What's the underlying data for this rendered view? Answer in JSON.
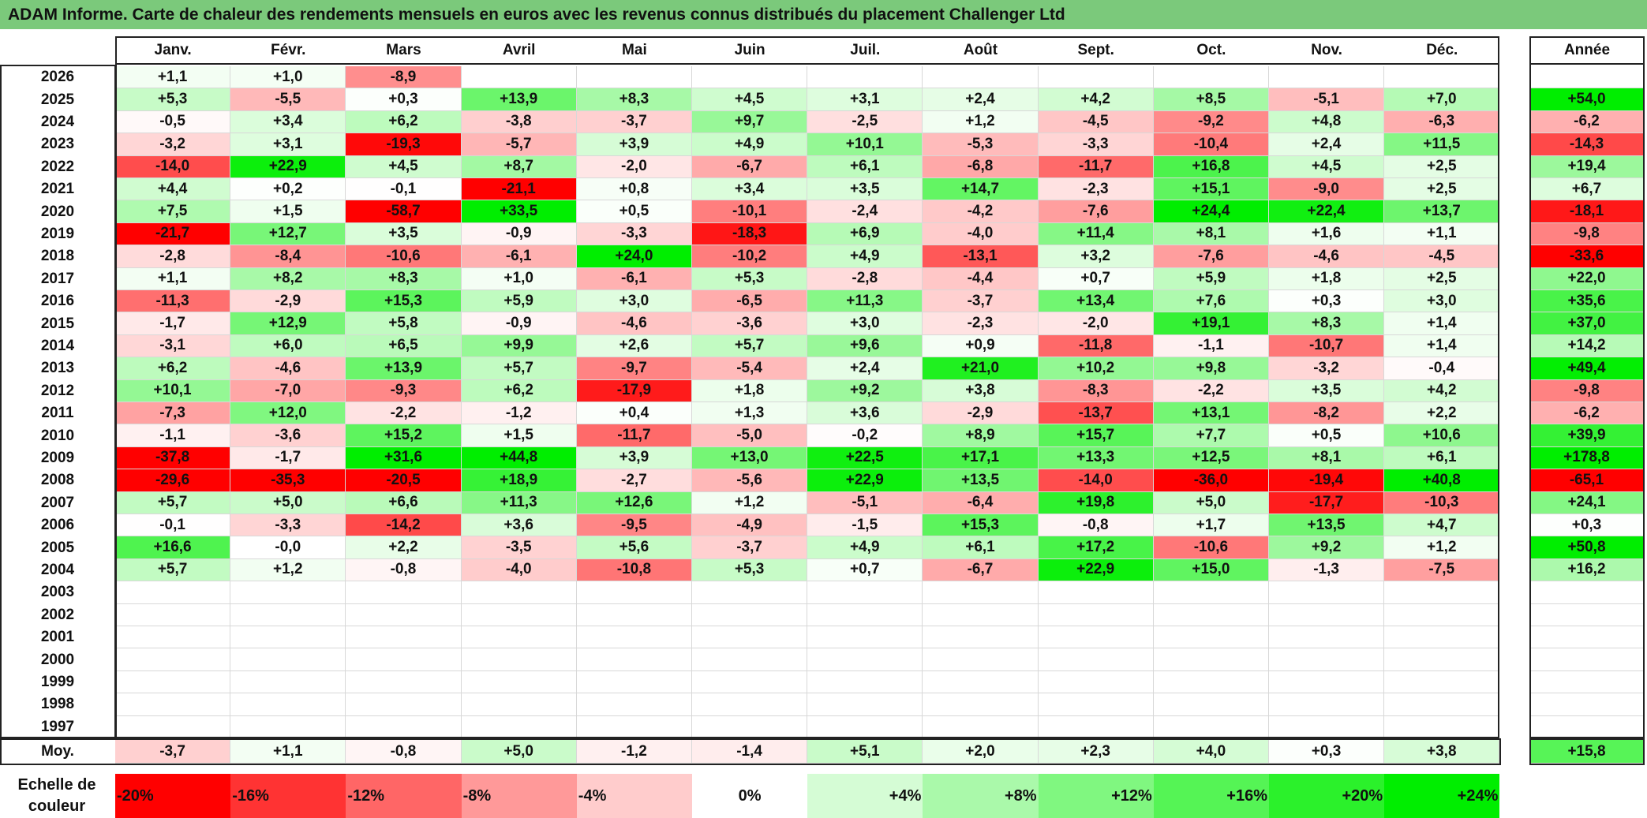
{
  "title": "ADAM Informe. Carte de chaleur des rendements mensuels en euros avec les revenus connus distribués du placement Challenger Ltd",
  "chart_data": {
    "type": "heatmap",
    "title": "ADAM Informe. Carte de chaleur des rendements mensuels en euros avec les revenus connus distribués du placement Challenger Ltd",
    "months": [
      "Janv.",
      "Févr.",
      "Mars",
      "Avril",
      "Mai",
      "Juin",
      "Juil.",
      "Août",
      "Sept.",
      "Oct.",
      "Nov.",
      "Déc."
    ],
    "year_header": "Année",
    "rows": [
      {
        "year": "2026",
        "values": [
          "+1,1",
          "+1,0",
          "-8,9",
          "",
          "",
          "",
          "",
          "",
          "",
          "",
          "",
          ""
        ],
        "annual": ""
      },
      {
        "year": "2025",
        "values": [
          "+5,3",
          "-5,5",
          "+0,3",
          "+13,9",
          "+8,3",
          "+4,5",
          "+3,1",
          "+2,4",
          "+4,2",
          "+8,5",
          "-5,1",
          "+7,0"
        ],
        "annual": "+54,0"
      },
      {
        "year": "2024",
        "values": [
          "-0,5",
          "+3,4",
          "+6,2",
          "-3,8",
          "-3,7",
          "+9,7",
          "-2,5",
          "+1,2",
          "-4,5",
          "-9,2",
          "+4,8",
          "-6,3"
        ],
        "annual": "-6,2"
      },
      {
        "year": "2023",
        "values": [
          "-3,2",
          "+3,1",
          "-19,3",
          "-5,7",
          "+3,9",
          "+4,9",
          "+10,1",
          "-5,3",
          "-3,3",
          "-10,4",
          "+2,4",
          "+11,5"
        ],
        "annual": "-14,3"
      },
      {
        "year": "2022",
        "values": [
          "-14,0",
          "+22,9",
          "+4,5",
          "+8,7",
          "-2,0",
          "-6,7",
          "+6,1",
          "-6,8",
          "-11,7",
          "+16,8",
          "+4,5",
          "+2,5"
        ],
        "annual": "+19,4"
      },
      {
        "year": "2021",
        "values": [
          "+4,4",
          "+0,2",
          "-0,1",
          "-21,1",
          "+0,8",
          "+3,4",
          "+3,5",
          "+14,7",
          "-2,3",
          "+15,1",
          "-9,0",
          "+2,5"
        ],
        "annual": "+6,7"
      },
      {
        "year": "2020",
        "values": [
          "+7,5",
          "+1,5",
          "-58,7",
          "+33,5",
          "+0,5",
          "-10,1",
          "-2,4",
          "-4,2",
          "-7,6",
          "+24,4",
          "+22,4",
          "+13,7"
        ],
        "annual": "-18,1"
      },
      {
        "year": "2019",
        "values": [
          "-21,7",
          "+12,7",
          "+3,5",
          "-0,9",
          "-3,3",
          "-18,3",
          "+6,9",
          "-4,0",
          "+11,4",
          "+8,1",
          "+1,6",
          "+1,1"
        ],
        "annual": "-9,8"
      },
      {
        "year": "2018",
        "values": [
          "-2,8",
          "-8,4",
          "-10,6",
          "-6,1",
          "+24,0",
          "-10,2",
          "+4,9",
          "-13,1",
          "+3,2",
          "-7,6",
          "-4,6",
          "-4,5"
        ],
        "annual": "-33,6"
      },
      {
        "year": "2017",
        "values": [
          "+1,1",
          "+8,2",
          "+8,3",
          "+1,0",
          "-6,1",
          "+5,3",
          "-2,8",
          "-4,4",
          "+0,7",
          "+5,9",
          "+1,8",
          "+2,5"
        ],
        "annual": "+22,0"
      },
      {
        "year": "2016",
        "values": [
          "-11,3",
          "-2,9",
          "+15,3",
          "+5,9",
          "+3,0",
          "-6,5",
          "+11,3",
          "-3,7",
          "+13,4",
          "+7,6",
          "+0,3",
          "+3,0"
        ],
        "annual": "+35,6"
      },
      {
        "year": "2015",
        "values": [
          "-1,7",
          "+12,9",
          "+5,8",
          "-0,9",
          "-4,6",
          "-3,6",
          "+3,0",
          "-2,3",
          "-2,0",
          "+19,1",
          "+8,3",
          "+1,4"
        ],
        "annual": "+37,0"
      },
      {
        "year": "2014",
        "values": [
          "-3,1",
          "+6,0",
          "+6,5",
          "+9,9",
          "+2,6",
          "+5,7",
          "+9,6",
          "+0,9",
          "-11,8",
          "-1,1",
          "-10,7",
          "+1,4"
        ],
        "annual": "+14,2"
      },
      {
        "year": "2013",
        "values": [
          "+6,2",
          "-4,6",
          "+13,9",
          "+5,7",
          "-9,7",
          "-5,4",
          "+2,4",
          "+21,0",
          "+10,2",
          "+9,8",
          "-3,2",
          "-0,4"
        ],
        "annual": "+49,4"
      },
      {
        "year": "2012",
        "values": [
          "+10,1",
          "-7,0",
          "-9,3",
          "+6,2",
          "-17,9",
          "+1,8",
          "+9,2",
          "+3,8",
          "-8,3",
          "-2,2",
          "+3,5",
          "+4,2"
        ],
        "annual": "-9,8"
      },
      {
        "year": "2011",
        "values": [
          "-7,3",
          "+12,0",
          "-2,2",
          "-1,2",
          "+0,4",
          "+1,3",
          "+3,6",
          "-2,9",
          "-13,7",
          "+13,1",
          "-8,2",
          "+2,2"
        ],
        "annual": "-6,2"
      },
      {
        "year": "2010",
        "values": [
          "-1,1",
          "-3,6",
          "+15,2",
          "+1,5",
          "-11,7",
          "-5,0",
          "-0,2",
          "+8,9",
          "+15,7",
          "+7,7",
          "+0,5",
          "+10,6"
        ],
        "annual": "+39,9"
      },
      {
        "year": "2009",
        "values": [
          "-37,8",
          "-1,7",
          "+31,6",
          "+44,8",
          "+3,9",
          "+13,0",
          "+22,5",
          "+17,1",
          "+13,3",
          "+12,5",
          "+8,1",
          "+6,1"
        ],
        "annual": "+178,8"
      },
      {
        "year": "2008",
        "values": [
          "-29,6",
          "-35,3",
          "-20,5",
          "+18,9",
          "-2,7",
          "-5,6",
          "+22,9",
          "+13,5",
          "-14,0",
          "-36,0",
          "-19,4",
          "+40,8"
        ],
        "annual": "-65,1"
      },
      {
        "year": "2007",
        "values": [
          "+5,7",
          "+5,0",
          "+6,6",
          "+11,3",
          "+12,6",
          "+1,2",
          "-5,1",
          "-6,4",
          "+19,8",
          "+5,0",
          "-17,7",
          "-10,3"
        ],
        "annual": "+24,1"
      },
      {
        "year": "2006",
        "values": [
          "-0,1",
          "-3,3",
          "-14,2",
          "+3,6",
          "-9,5",
          "-4,9",
          "-1,5",
          "+15,3",
          "-0,8",
          "+1,7",
          "+13,5",
          "+4,7"
        ],
        "annual": "+0,3"
      },
      {
        "year": "2005",
        "values": [
          "+16,6",
          "-0,0",
          "+2,2",
          "-3,5",
          "+5,6",
          "-3,7",
          "+4,9",
          "+6,1",
          "+17,2",
          "-10,6",
          "+9,2",
          "+1,2"
        ],
        "annual": "+50,8"
      },
      {
        "year": "2004",
        "values": [
          "+5,7",
          "+1,2",
          "-0,8",
          "-4,0",
          "-10,8",
          "+5,3",
          "+0,7",
          "-6,7",
          "+22,9",
          "+15,0",
          "-1,3",
          "-7,5"
        ],
        "annual": "+16,2"
      },
      {
        "year": "2003",
        "values": [
          "",
          "",
          "",
          "",
          "",
          "",
          "",
          "",
          "",
          "",
          "",
          ""
        ],
        "annual": ""
      },
      {
        "year": "2002",
        "values": [
          "",
          "",
          "",
          "",
          "",
          "",
          "",
          "",
          "",
          "",
          "",
          ""
        ],
        "annual": ""
      },
      {
        "year": "2001",
        "values": [
          "",
          "",
          "",
          "",
          "",
          "",
          "",
          "",
          "",
          "",
          "",
          ""
        ],
        "annual": ""
      },
      {
        "year": "2000",
        "values": [
          "",
          "",
          "",
          "",
          "",
          "",
          "",
          "",
          "",
          "",
          "",
          ""
        ],
        "annual": ""
      },
      {
        "year": "1999",
        "values": [
          "",
          "",
          "",
          "",
          "",
          "",
          "",
          "",
          "",
          "",
          "",
          ""
        ],
        "annual": ""
      },
      {
        "year": "1998",
        "values": [
          "",
          "",
          "",
          "",
          "",
          "",
          "",
          "",
          "",
          "",
          "",
          ""
        ],
        "annual": ""
      },
      {
        "year": "1997",
        "values": [
          "",
          "",
          "",
          "",
          "",
          "",
          "",
          "",
          "",
          "",
          "",
          ""
        ],
        "annual": ""
      }
    ],
    "average": {
      "label": "Moy.",
      "values": [
        "-3,7",
        "+1,1",
        "-0,8",
        "+5,0",
        "-1,2",
        "-1,4",
        "+5,1",
        "+2,0",
        "+2,3",
        "+4,0",
        "+0,3",
        "+3,8"
      ],
      "annual": "+15,8"
    },
    "color_scale": {
      "label_line1": "Echelle de",
      "label_line2": "couleur",
      "stops": [
        "-20%",
        "-16%",
        "-12%",
        "-8%",
        "-4%",
        "0%",
        "+4%",
        "+8%",
        "+12%",
        "+16%",
        "+20%",
        "+24%"
      ],
      "stop_values": [
        -20,
        -16,
        -12,
        -8,
        -4,
        0,
        4,
        8,
        12,
        16,
        20,
        24
      ]
    },
    "colors": {
      "negative_max": "#ff0000",
      "neutral": "#ffffff",
      "positive_max": "#00ee00",
      "title_bar": "#7bc97b"
    }
  }
}
